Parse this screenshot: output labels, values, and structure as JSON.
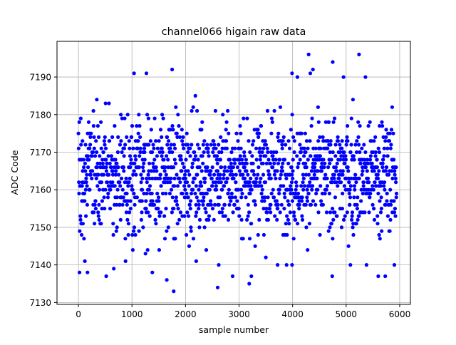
{
  "chart_data": {
    "type": "scatter",
    "title": "channel066 higain raw data",
    "xlabel": "sample number",
    "ylabel": "ADC Code",
    "xlim": [
      -400,
      6200
    ],
    "ylim": [
      7129.5,
      7199.5
    ],
    "xticks": [
      0,
      1000,
      2000,
      3000,
      4000,
      5000,
      6000
    ],
    "yticks": [
      7130,
      7140,
      7150,
      7160,
      7170,
      7180,
      7190
    ],
    "grid": true,
    "series": [
      {
        "marker": "circle",
        "color": "#0000ff",
        "n_samples": 5940,
        "x_range": [
          0,
          5940
        ],
        "typical_range": [
          7146,
          7180
        ],
        "center": 7164,
        "outliers": [
          {
            "x": 20,
            "y": 7138
          },
          {
            "x": 170,
            "y": 7138
          },
          {
            "x": 520,
            "y": 7137
          },
          {
            "x": 660,
            "y": 7139
          },
          {
            "x": 880,
            "y": 7141
          },
          {
            "x": 1380,
            "y": 7138
          },
          {
            "x": 1650,
            "y": 7136
          },
          {
            "x": 1780,
            "y": 7133
          },
          {
            "x": 1750,
            "y": 7192
          },
          {
            "x": 1040,
            "y": 7191
          },
          {
            "x": 1270,
            "y": 7191
          },
          {
            "x": 2200,
            "y": 7141
          },
          {
            "x": 2600,
            "y": 7134
          },
          {
            "x": 2620,
            "y": 7140
          },
          {
            "x": 2880,
            "y": 7137
          },
          {
            "x": 3190,
            "y": 7135
          },
          {
            "x": 3230,
            "y": 7137
          },
          {
            "x": 3720,
            "y": 7140
          },
          {
            "x": 3990,
            "y": 7140
          },
          {
            "x": 3990,
            "y": 7191
          },
          {
            "x": 4090,
            "y": 7190
          },
          {
            "x": 4300,
            "y": 7196
          },
          {
            "x": 4330,
            "y": 7191
          },
          {
            "x": 4380,
            "y": 7192
          },
          {
            "x": 4750,
            "y": 7194
          },
          {
            "x": 4740,
            "y": 7137
          },
          {
            "x": 4950,
            "y": 7190
          },
          {
            "x": 5080,
            "y": 7140
          },
          {
            "x": 5240,
            "y": 7196
          },
          {
            "x": 5360,
            "y": 7190
          },
          {
            "x": 5380,
            "y": 7140
          },
          {
            "x": 5600,
            "y": 7137
          },
          {
            "x": 5730,
            "y": 7137
          },
          {
            "x": 5900,
            "y": 7140
          }
        ]
      }
    ]
  }
}
